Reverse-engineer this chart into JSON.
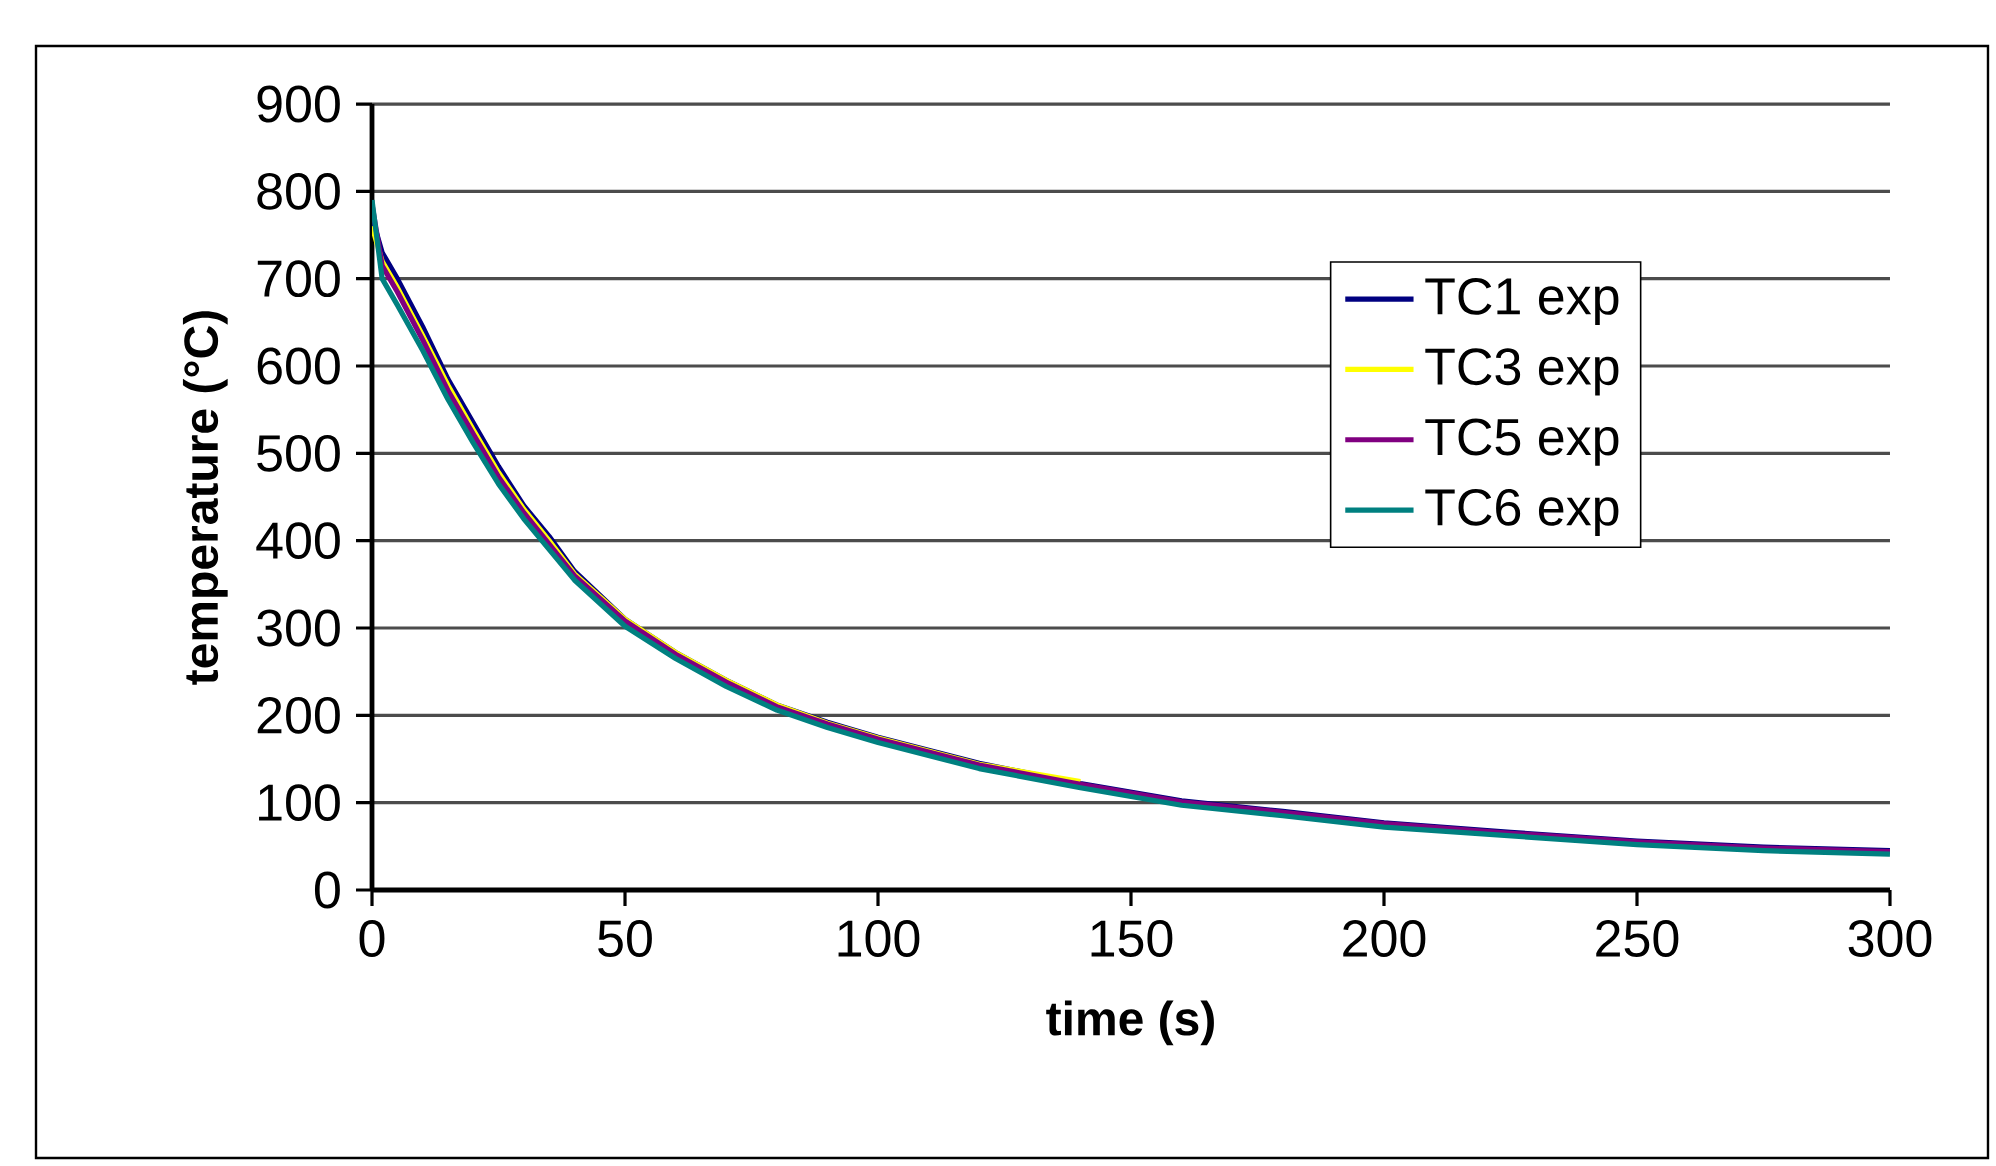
{
  "chart_data": {
    "type": "line",
    "xlabel": "time (s)",
    "ylabel": "temperature (°C)",
    "xlim": [
      0,
      300
    ],
    "ylim": [
      0,
      900
    ],
    "xticks": [
      0,
      50,
      100,
      150,
      200,
      250,
      300
    ],
    "yticks": [
      0,
      100,
      200,
      300,
      400,
      500,
      600,
      700,
      800,
      900
    ],
    "grid": "y",
    "legend": "right",
    "line_style": "solid",
    "marker": "none",
    "series": [
      {
        "name": "TC1 exp",
        "color": "#000080",
        "x": [
          0,
          2,
          5,
          10,
          15,
          20,
          25,
          30,
          35,
          40,
          50,
          60,
          70,
          80,
          90,
          100,
          120,
          140,
          160,
          180,
          200,
          225,
          250,
          275,
          300
        ],
        "values": [
          770,
          730,
          700,
          645,
          585,
          535,
          485,
          440,
          405,
          365,
          310,
          272,
          240,
          212,
          192,
          175,
          145,
          122,
          102,
          90,
          77,
          66,
          56,
          49,
          45
        ]
      },
      {
        "name": "TC3 exp",
        "color": "#ffff00",
        "x": [
          0,
          2,
          5,
          10,
          15,
          20,
          25,
          30,
          35,
          40,
          50,
          60,
          70,
          80,
          90,
          100,
          120,
          140
        ],
        "values": [
          760,
          720,
          690,
          635,
          578,
          527,
          478,
          436,
          400,
          362,
          310,
          272,
          240,
          212,
          191,
          174,
          144,
          124
        ]
      },
      {
        "name": "TC5 exp",
        "color": "#800080",
        "x": [
          0,
          2,
          5,
          10,
          15,
          20,
          25,
          30,
          35,
          40,
          50,
          60,
          70,
          80,
          90,
          100,
          120,
          140,
          160,
          180,
          200,
          225,
          250,
          275,
          300
        ],
        "values": [
          785,
          715,
          685,
          630,
          572,
          522,
          473,
          432,
          396,
          360,
          308,
          270,
          238,
          210,
          190,
          173,
          143,
          121,
          101,
          89,
          76,
          65,
          55,
          48,
          44
        ]
      },
      {
        "name": "TC6 exp",
        "color": "#008080",
        "x": [
          0,
          2,
          5,
          10,
          15,
          20,
          25,
          30,
          35,
          40,
          50,
          60,
          70,
          80,
          90,
          100,
          120,
          140,
          160,
          180,
          200,
          225,
          250,
          275,
          300
        ],
        "values": [
          790,
          700,
          670,
          618,
          562,
          512,
          465,
          425,
          390,
          355,
          302,
          265,
          233,
          206,
          186,
          169,
          139,
          117,
          97,
          85,
          72,
          62,
          52,
          45,
          41
        ]
      }
    ]
  }
}
